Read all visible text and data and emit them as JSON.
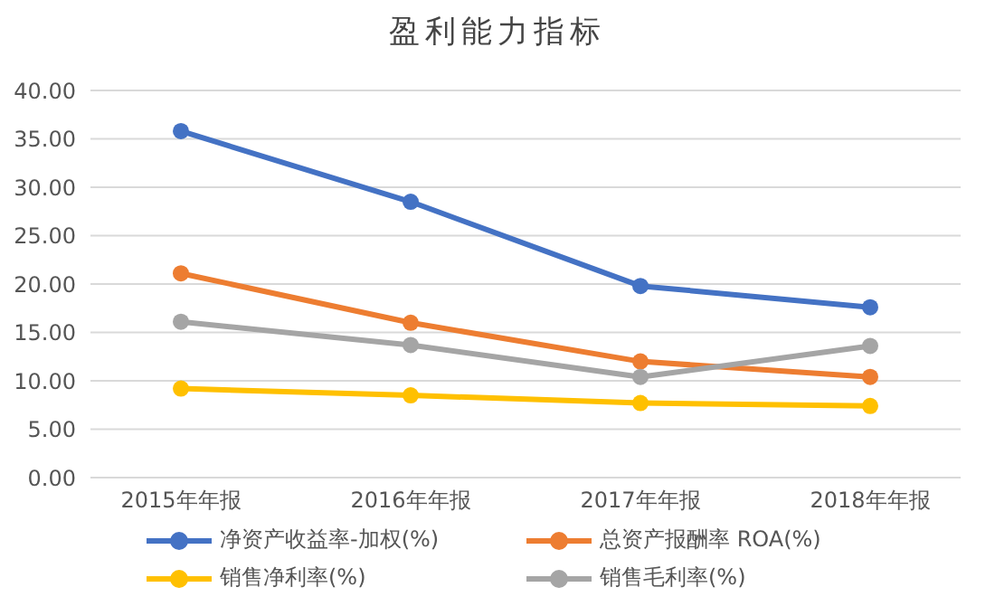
{
  "chart_data": {
    "type": "line",
    "title": "盈利能力指标",
    "categories": [
      "2015年年报",
      "2016年年报",
      "2017年年报",
      "2018年年报"
    ],
    "series": [
      {
        "name": "净资产收益率-加权(%)",
        "color": "#4472c4",
        "values": [
          35.8,
          28.5,
          19.8,
          17.6
        ]
      },
      {
        "name": "总资产报酬率 ROA(%)",
        "color": "#ed7d31",
        "values": [
          21.1,
          16.0,
          12.0,
          10.4
        ]
      },
      {
        "name": "销售毛利率(%)",
        "color": "#a5a5a5",
        "values": [
          16.1,
          13.7,
          10.4,
          13.6
        ]
      },
      {
        "name": "销售净利率(%)",
        "color": "#ffc000",
        "values": [
          9.2,
          8.5,
          7.7,
          7.4
        ]
      }
    ],
    "ylim": [
      0,
      40
    ],
    "yticks": [
      {
        "value": 0,
        "label": "0.00"
      },
      {
        "value": 5,
        "label": "5.00"
      },
      {
        "value": 10,
        "label": "10.00"
      },
      {
        "value": 15,
        "label": "15.00"
      },
      {
        "value": 20,
        "label": "20.00"
      },
      {
        "value": 25,
        "label": "25.00"
      },
      {
        "value": 30,
        "label": "30.00"
      },
      {
        "value": 35,
        "label": "35.00"
      },
      {
        "value": 40,
        "label": "40.00"
      }
    ],
    "grid": "y",
    "legend": "bottom",
    "marker": "circle",
    "line_style": "solid"
  }
}
